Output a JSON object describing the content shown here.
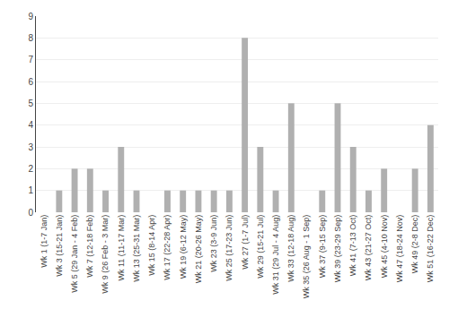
{
  "chart_data": {
    "type": "bar",
    "categories": [
      "Wk 1 (1-7 Jan)",
      "Wk 3 (15-21 Jan)",
      "Wk 5 (29 Jan - 4 Feb)",
      "Wk 7 (12-18 Feb)",
      "Wk 9 (26 Feb - 3 Mar)",
      "Wk 11 (11-17 Mar)",
      "Wk 13 (25-31 Mar)",
      "Wk 15 (8-14 Apr)",
      "Wk 17 (22-28 Apr)",
      "Wk 19 (6-12 May)",
      "Wk 21 (20-26 May)",
      "Wk 23 (3-9 Jun)",
      "Wk 25 (17-23 Jun)",
      "Wk 27 (1-7 Jul)",
      "Wk 29 (15-21 Jul)",
      "Wk 31 (29 Jul - 4 Aug)",
      "Wk 33 (12-18 Aug)",
      "Wk 35 (26 Aug - 1 Sep)",
      "Wk 37 (9-15 Sep)",
      "Wk 39 (23-29 Sep)",
      "Wk 41 (7-13 Oct)",
      "Wk 43 (21-27 Oct)",
      "Wk 45 (4-10 Nov)",
      "Wk 47 (18-24 Nov)",
      "Wk 49 (2-8 Dec)",
      "Wk 51 (16-22 Dec)"
    ],
    "values": [
      0,
      1,
      2,
      2,
      1,
      3,
      1,
      0,
      1,
      1,
      1,
      1,
      1,
      8,
      3,
      1,
      5,
      0,
      1,
      5,
      3,
      1,
      2,
      0,
      2,
      4
    ],
    "color": "#b0b0b0",
    "ylim": [
      0,
      9
    ],
    "yticks": [
      0,
      1,
      2,
      3,
      4,
      5,
      6,
      7,
      8,
      9
    ],
    "grid": true
  }
}
